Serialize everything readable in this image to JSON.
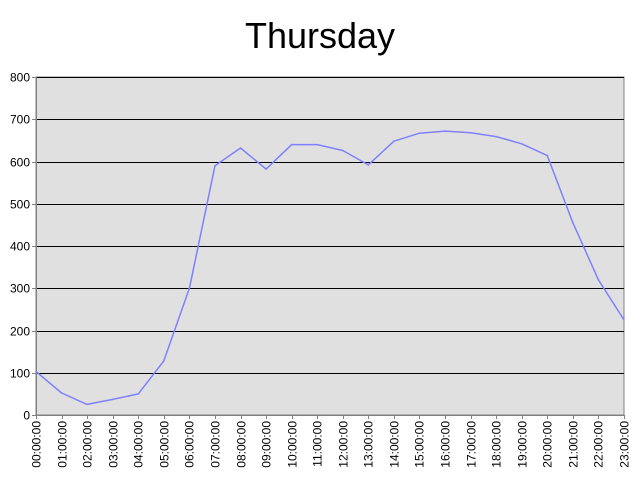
{
  "chart_data": {
    "type": "line",
    "title": "Thursday",
    "xlabel": "",
    "ylabel": "",
    "ylim": [
      0,
      800
    ],
    "yticks": [
      0,
      100,
      200,
      300,
      400,
      500,
      600,
      700,
      800
    ],
    "grid": true,
    "legend": "none",
    "x": [
      "00:00:00",
      "01:00:00",
      "02:00:00",
      "03:00:00",
      "04:00:00",
      "05:00:00",
      "06:00:00",
      "07:00:00",
      "08:00:00",
      "09:00:00",
      "10:00:00",
      "11:00:00",
      "12:00:00",
      "13:00:00",
      "14:00:00",
      "15:00:00",
      "16:00:00",
      "17:00:00",
      "18:00:00",
      "19:00:00",
      "20:00:00",
      "21:00:00",
      "22:00:00",
      "23:00:00"
    ],
    "series": [
      {
        "values": [
          103,
          52,
          25,
          37,
          50,
          128,
          300,
          590,
          632,
          582,
          640,
          640,
          626,
          592,
          648,
          667,
          672,
          668,
          659,
          642,
          614,
          455,
          320,
          225
        ]
      }
    ]
  },
  "colors": {
    "plot_background": "#e0e0e0",
    "line": "#8080ff",
    "grid": "#000000",
    "axis": "#808080"
  }
}
